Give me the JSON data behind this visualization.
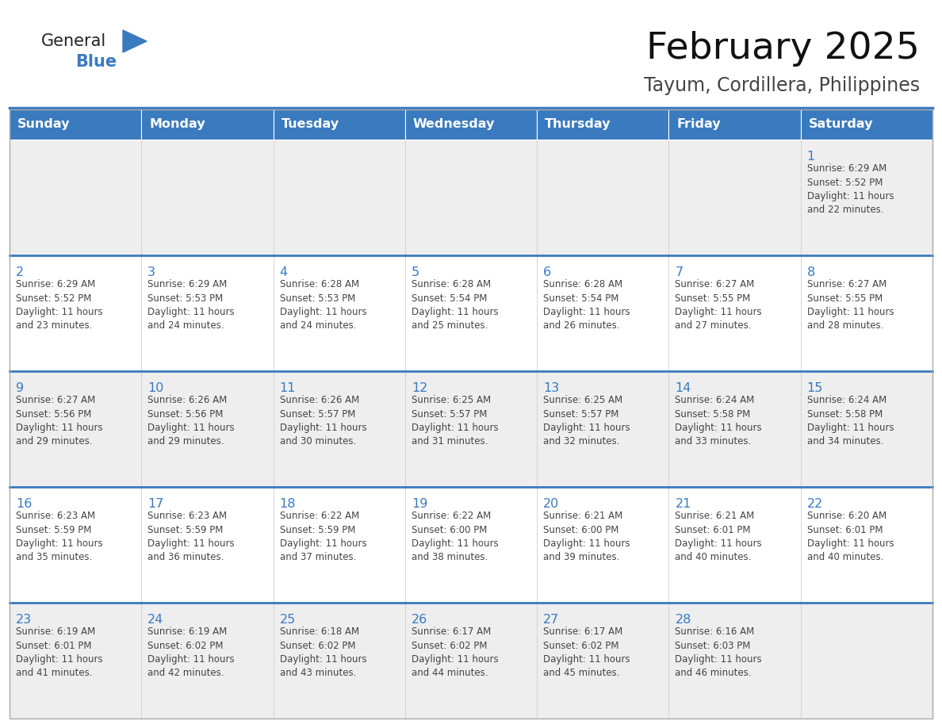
{
  "title": "February 2025",
  "subtitle": "Tayum, Cordillera, Philippines",
  "header_bg": "#3a7abf",
  "header_text_color": "#ffffff",
  "cell_bg_odd": "#eeeeee",
  "cell_bg_even": "#ffffff",
  "day_number_color": "#3a7abf",
  "info_text_color": "#444444",
  "row_divider_color": "#3a7abf",
  "days_of_week": [
    "Sunday",
    "Monday",
    "Tuesday",
    "Wednesday",
    "Thursday",
    "Friday",
    "Saturday"
  ],
  "weeks": [
    [
      {
        "day": null,
        "info": ""
      },
      {
        "day": null,
        "info": ""
      },
      {
        "day": null,
        "info": ""
      },
      {
        "day": null,
        "info": ""
      },
      {
        "day": null,
        "info": ""
      },
      {
        "day": null,
        "info": ""
      },
      {
        "day": 1,
        "info": "Sunrise: 6:29 AM\nSunset: 5:52 PM\nDaylight: 11 hours\nand 22 minutes."
      }
    ],
    [
      {
        "day": 2,
        "info": "Sunrise: 6:29 AM\nSunset: 5:52 PM\nDaylight: 11 hours\nand 23 minutes."
      },
      {
        "day": 3,
        "info": "Sunrise: 6:29 AM\nSunset: 5:53 PM\nDaylight: 11 hours\nand 24 minutes."
      },
      {
        "day": 4,
        "info": "Sunrise: 6:28 AM\nSunset: 5:53 PM\nDaylight: 11 hours\nand 24 minutes."
      },
      {
        "day": 5,
        "info": "Sunrise: 6:28 AM\nSunset: 5:54 PM\nDaylight: 11 hours\nand 25 minutes."
      },
      {
        "day": 6,
        "info": "Sunrise: 6:28 AM\nSunset: 5:54 PM\nDaylight: 11 hours\nand 26 minutes."
      },
      {
        "day": 7,
        "info": "Sunrise: 6:27 AM\nSunset: 5:55 PM\nDaylight: 11 hours\nand 27 minutes."
      },
      {
        "day": 8,
        "info": "Sunrise: 6:27 AM\nSunset: 5:55 PM\nDaylight: 11 hours\nand 28 minutes."
      }
    ],
    [
      {
        "day": 9,
        "info": "Sunrise: 6:27 AM\nSunset: 5:56 PM\nDaylight: 11 hours\nand 29 minutes."
      },
      {
        "day": 10,
        "info": "Sunrise: 6:26 AM\nSunset: 5:56 PM\nDaylight: 11 hours\nand 29 minutes."
      },
      {
        "day": 11,
        "info": "Sunrise: 6:26 AM\nSunset: 5:57 PM\nDaylight: 11 hours\nand 30 minutes."
      },
      {
        "day": 12,
        "info": "Sunrise: 6:25 AM\nSunset: 5:57 PM\nDaylight: 11 hours\nand 31 minutes."
      },
      {
        "day": 13,
        "info": "Sunrise: 6:25 AM\nSunset: 5:57 PM\nDaylight: 11 hours\nand 32 minutes."
      },
      {
        "day": 14,
        "info": "Sunrise: 6:24 AM\nSunset: 5:58 PM\nDaylight: 11 hours\nand 33 minutes."
      },
      {
        "day": 15,
        "info": "Sunrise: 6:24 AM\nSunset: 5:58 PM\nDaylight: 11 hours\nand 34 minutes."
      }
    ],
    [
      {
        "day": 16,
        "info": "Sunrise: 6:23 AM\nSunset: 5:59 PM\nDaylight: 11 hours\nand 35 minutes."
      },
      {
        "day": 17,
        "info": "Sunrise: 6:23 AM\nSunset: 5:59 PM\nDaylight: 11 hours\nand 36 minutes."
      },
      {
        "day": 18,
        "info": "Sunrise: 6:22 AM\nSunset: 5:59 PM\nDaylight: 11 hours\nand 37 minutes."
      },
      {
        "day": 19,
        "info": "Sunrise: 6:22 AM\nSunset: 6:00 PM\nDaylight: 11 hours\nand 38 minutes."
      },
      {
        "day": 20,
        "info": "Sunrise: 6:21 AM\nSunset: 6:00 PM\nDaylight: 11 hours\nand 39 minutes."
      },
      {
        "day": 21,
        "info": "Sunrise: 6:21 AM\nSunset: 6:01 PM\nDaylight: 11 hours\nand 40 minutes."
      },
      {
        "day": 22,
        "info": "Sunrise: 6:20 AM\nSunset: 6:01 PM\nDaylight: 11 hours\nand 40 minutes."
      }
    ],
    [
      {
        "day": 23,
        "info": "Sunrise: 6:19 AM\nSunset: 6:01 PM\nDaylight: 11 hours\nand 41 minutes."
      },
      {
        "day": 24,
        "info": "Sunrise: 6:19 AM\nSunset: 6:02 PM\nDaylight: 11 hours\nand 42 minutes."
      },
      {
        "day": 25,
        "info": "Sunrise: 6:18 AM\nSunset: 6:02 PM\nDaylight: 11 hours\nand 43 minutes."
      },
      {
        "day": 26,
        "info": "Sunrise: 6:17 AM\nSunset: 6:02 PM\nDaylight: 11 hours\nand 44 minutes."
      },
      {
        "day": 27,
        "info": "Sunrise: 6:17 AM\nSunset: 6:02 PM\nDaylight: 11 hours\nand 45 minutes."
      },
      {
        "day": 28,
        "info": "Sunrise: 6:16 AM\nSunset: 6:03 PM\nDaylight: 11 hours\nand 46 minutes."
      },
      {
        "day": null,
        "info": ""
      }
    ]
  ],
  "logo_text1": "General",
  "logo_text2": "Blue",
  "logo_color1": "#222222",
  "logo_color2": "#3a7abf",
  "figsize": [
    11.88,
    9.18
  ],
  "dpi": 100
}
